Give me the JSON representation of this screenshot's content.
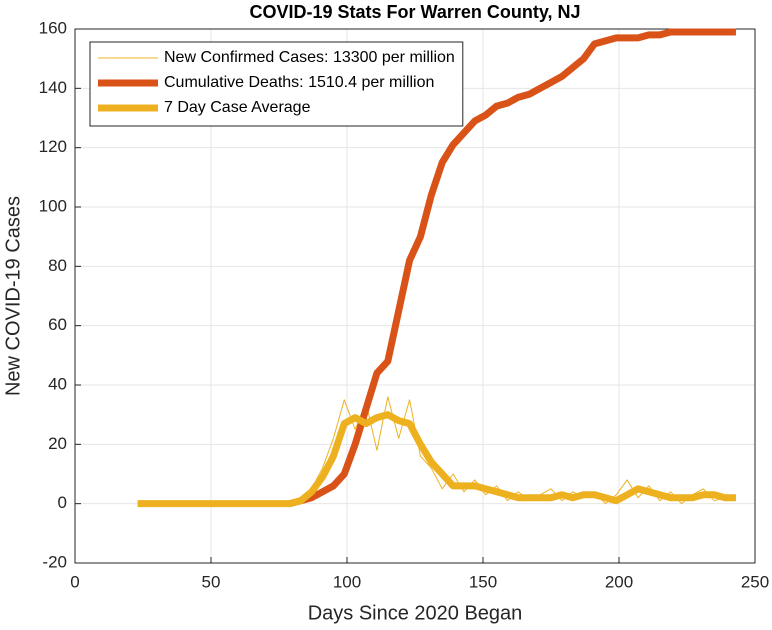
{
  "chart_data": {
    "type": "line",
    "title": "COVID-19 Stats For Warren County, NJ",
    "xlabel": "Days Since 2020 Began",
    "ylabel": "New COVID-19 Cases",
    "x": [
      23,
      27,
      31,
      35,
      39,
      43,
      47,
      51,
      55,
      59,
      63,
      67,
      71,
      75,
      79,
      83,
      87,
      91,
      95,
      99,
      103,
      107,
      111,
      115,
      119,
      123,
      127,
      131,
      135,
      139,
      143,
      147,
      151,
      155,
      159,
      163,
      167,
      171,
      175,
      179,
      183,
      187,
      191,
      195,
      199,
      203,
      207,
      211,
      215,
      219,
      223,
      227,
      231,
      235,
      239,
      243
    ],
    "series": [
      {
        "name": "New Confirmed Cases: 13300 per million",
        "color": "#EDB120",
        "width": 1,
        "values": [
          0,
          0,
          0,
          0,
          0,
          0,
          0,
          0,
          0,
          0,
          0,
          0,
          0,
          0,
          0,
          2,
          5,
          12,
          22,
          35,
          25,
          34,
          18,
          36,
          22,
          35,
          16,
          12,
          5,
          10,
          4,
          8,
          3,
          6,
          1,
          4,
          1,
          3,
          5,
          1,
          4,
          2,
          4,
          0,
          3,
          8,
          2,
          6,
          1,
          4,
          0,
          3,
          5,
          1,
          2,
          3
        ]
      },
      {
        "name": "Cumulative Deaths: 1510.4 per million",
        "color": "#D95319",
        "width": 7,
        "values": [
          null,
          null,
          null,
          null,
          null,
          null,
          null,
          null,
          null,
          null,
          null,
          null,
          null,
          null,
          0,
          1,
          2,
          4,
          6,
          10,
          20,
          32,
          44,
          48,
          65,
          82,
          90,
          104,
          115,
          121,
          125,
          129,
          131,
          134,
          135,
          137,
          138,
          140,
          142,
          144,
          147,
          150,
          155,
          156,
          157,
          157,
          157,
          158,
          158,
          159,
          159,
          159,
          159,
          159,
          159,
          159
        ]
      },
      {
        "name": "7 Day Case Average",
        "color": "#EDB120",
        "width": 7,
        "values": [
          0,
          0,
          0,
          0,
          0,
          0,
          0,
          0,
          0,
          0,
          0,
          0,
          0,
          0,
          0,
          1,
          4,
          9,
          16,
          27,
          29,
          27,
          29,
          30,
          28,
          27,
          20,
          14,
          10,
          6,
          6,
          6,
          5,
          4,
          3,
          2,
          2,
          2,
          2,
          3,
          2,
          3,
          3,
          2,
          1,
          3,
          5,
          4,
          3,
          2,
          2,
          2,
          3,
          3,
          2,
          2
        ]
      }
    ],
    "xlim": [
      0,
      250
    ],
    "xticks": [
      0,
      50,
      100,
      150,
      200,
      250
    ],
    "ylim": [
      -20,
      160
    ],
    "yticks": [
      -20,
      0,
      20,
      40,
      60,
      80,
      100,
      120,
      140,
      160
    ],
    "grid": true,
    "legend": "northwest"
  }
}
